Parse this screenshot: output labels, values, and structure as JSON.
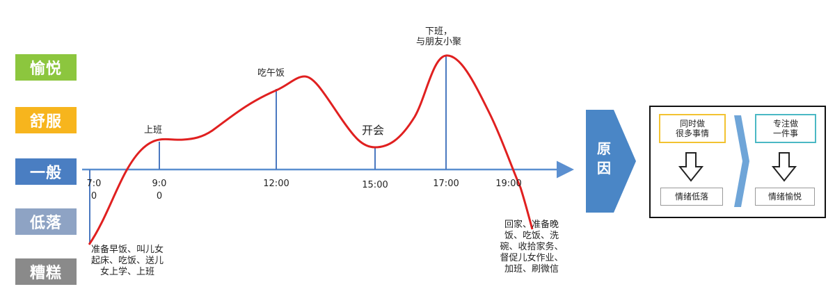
{
  "moods": [
    {
      "label": "愉悦",
      "color": "#8cc63e"
    },
    {
      "label": "舒服",
      "color": "#f7b51d"
    },
    {
      "label": "一般",
      "color": "#4a7ec2"
    },
    {
      "label": "低落",
      "color": "#8ea3c4"
    },
    {
      "label": "糟糕",
      "color": "#8a8a8a"
    }
  ],
  "chart_data": {
    "type": "line",
    "x_ticks": [
      "7:0\n0",
      "9:0\n0",
      "12:00",
      "15:00",
      "17:00",
      "19:00"
    ],
    "y_levels": [
      "糟糕",
      "低落",
      "一般",
      "舒服",
      "愉悦"
    ],
    "events": [
      {
        "time": "7:00",
        "label": "准备早饭、叫儿女起床、吃饭、送儿女上学、上班"
      },
      {
        "time": "9:00",
        "label": "上班"
      },
      {
        "time": "12:00",
        "label": "吃午饭"
      },
      {
        "time": "15:00",
        "label": "开会"
      },
      {
        "time": "17:00",
        "label": "下班，与朋友小聚"
      },
      {
        "time": "19:00",
        "label": "回家、准备晚饭、吃饭、洗碗、收拾家务、督促儿女作业、加班、刷微信"
      }
    ]
  },
  "labels": {
    "work": "上班",
    "lunch": "吃午饭",
    "meeting": "开会",
    "off_work": "下班，\n与朋友小聚",
    "morning": "准备早饭、叫儿女\n起床、吃饭、送儿\n女上学、上班",
    "evening": "回家、准备晚\n饭、吃饭、洗\n碗、收拾家务、\n督促儿女作业、\n加班、刷微信"
  },
  "reason": {
    "label": "原\n因",
    "color": "#4a86c6"
  },
  "panel": {
    "left_top": "同时做\n很多事情",
    "left_bottom": "情绪低落",
    "right_top": "专注做\n一件事",
    "right_bottom": "情绪愉悦",
    "left_top_border": "#f2c230",
    "right_top_border": "#4ab8c4",
    "chevron_color": "#6fa5d8"
  },
  "colors": {
    "axis": "#5b8fd0",
    "curve": "#e02020",
    "drop": "#4a78c0"
  }
}
